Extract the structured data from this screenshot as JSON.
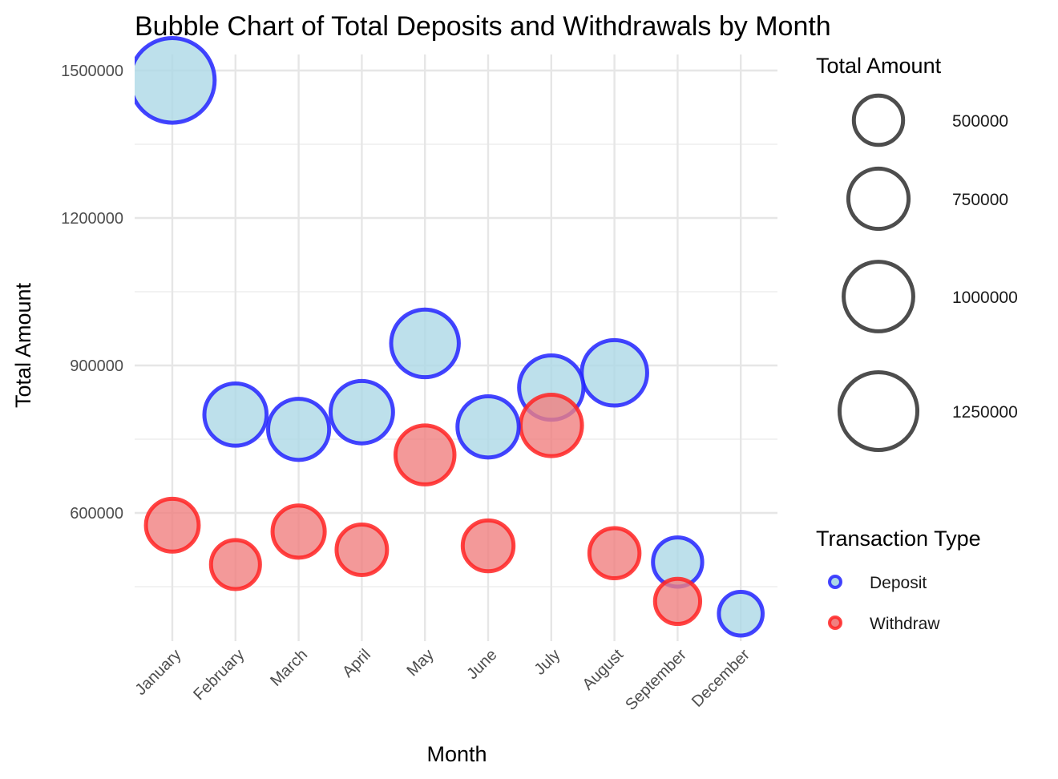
{
  "chart_data": {
    "type": "scatter",
    "title": "Bubble Chart of Total Deposits and Withdrawals by Month",
    "xlabel": "Month",
    "ylabel": "Total Amount",
    "categories": [
      "January",
      "February",
      "March",
      "April",
      "May",
      "June",
      "July",
      "August",
      "September",
      "December"
    ],
    "ylim": [
      340000,
      1540000
    ],
    "yticks": [
      600000,
      900000,
      1200000,
      1500000
    ],
    "yticks_labels": [
      "600000",
      "900000",
      "1200000",
      "1500000"
    ],
    "grid": true,
    "legend_placement": "right",
    "size_legend": {
      "title": "Total Amount",
      "breaks": [
        500000,
        750000,
        1000000,
        1250000
      ],
      "labels": [
        "500000",
        "750000",
        "1000000",
        "1250000"
      ],
      "color": "#4d4d4d"
    },
    "color_legend": {
      "title": "Transaction Type",
      "items": [
        "Deposit",
        "Withdraw"
      ]
    },
    "series": [
      {
        "name": "Deposit",
        "stroke": "#2323ff",
        "fill": "#add8e6",
        "x": [
          "January",
          "February",
          "March",
          "April",
          "May",
          "June",
          "July",
          "August",
          "September",
          "December"
        ],
        "values": [
          1480000,
          800000,
          770000,
          805000,
          945000,
          775000,
          855000,
          885000,
          500000,
          395000
        ]
      },
      {
        "name": "Withdraw",
        "stroke": "#ff2323",
        "fill": "#f08080",
        "x": [
          "January",
          "February",
          "March",
          "April",
          "May",
          "June",
          "July",
          "August",
          "September"
        ],
        "values": [
          575000,
          495000,
          562000,
          525000,
          718000,
          533000,
          778000,
          518000,
          420000
        ]
      }
    ]
  }
}
